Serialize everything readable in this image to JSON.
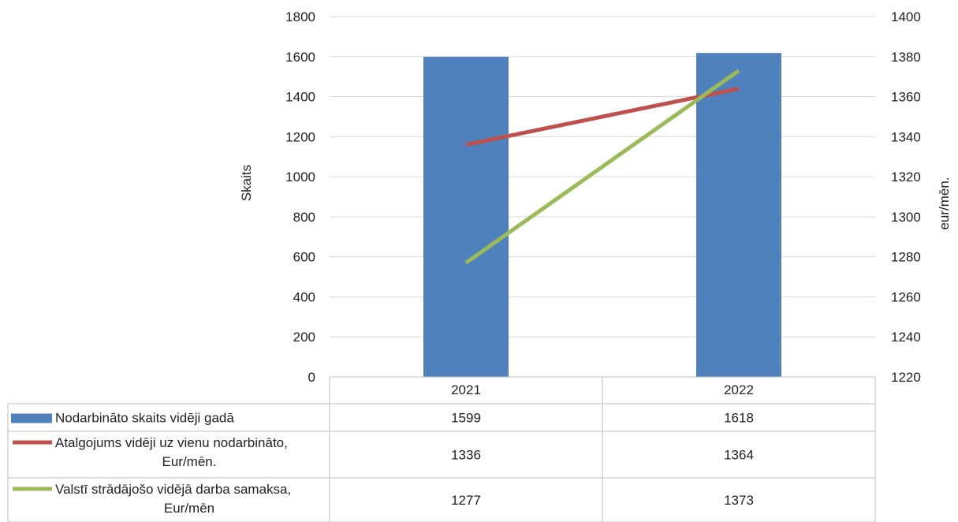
{
  "chart_data": {
    "type": "bar",
    "categories": [
      "2021",
      "2022"
    ],
    "ylabel": "Skaits",
    "y2label": "eur/mēn.",
    "ylim": [
      0,
      1800
    ],
    "y2lim": [
      1220,
      1400
    ],
    "yticks": [
      "0",
      "200",
      "400",
      "600",
      "800",
      "1000",
      "1200",
      "1400",
      "1600",
      "1800"
    ],
    "y2ticks": [
      "1220",
      "1240",
      "1260",
      "1280",
      "1300",
      "1320",
      "1340",
      "1360",
      "1380",
      "1400"
    ],
    "grid": true,
    "legend": "data-table",
    "series": [
      {
        "name": "Nodarbināto skaits vidēji gadā",
        "label_lines": [
          "Nodarbināto skaits vidēji gadā"
        ],
        "type": "bar",
        "axis": "left",
        "color": "#4f81bd",
        "values": [
          1599,
          1618
        ],
        "display": [
          "1599",
          "1618"
        ]
      },
      {
        "name": "Atalgojums vidēji uz vienu nodarbināto, Eur/mēn.",
        "label_lines": [
          "Atalgojums vidēji uz vienu nodarbināto,",
          "Eur/mēn."
        ],
        "type": "line",
        "axis": "right",
        "color": "#c0504d",
        "values": [
          1336,
          1364
        ],
        "display": [
          "1336",
          "1364"
        ]
      },
      {
        "name": "Valstī strādājošo vidējā darba samaksa, Eur/mēn",
        "label_lines": [
          "Valstī strādājošo vidējā darba samaksa,",
          "Eur/mēn"
        ],
        "type": "line",
        "axis": "right",
        "color": "#9bbb59",
        "values": [
          1277,
          1373
        ],
        "display": [
          "1277",
          "1373"
        ]
      }
    ]
  }
}
